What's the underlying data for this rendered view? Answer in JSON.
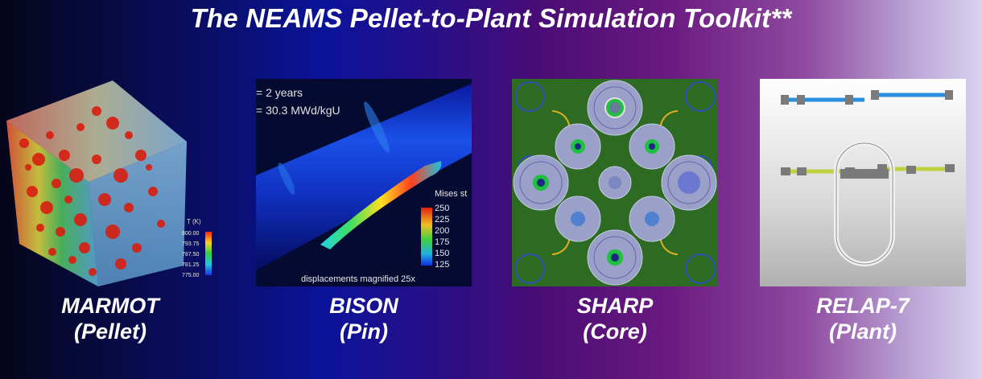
{
  "title": "The NEAMS Pellet-to-Plant Simulation Toolkit**",
  "panels": [
    {
      "name": "MARMOT",
      "subtitle": "(Pellet)",
      "image": {
        "legend_title": "T (K)",
        "legend_ticks": [
          "800.00",
          "793.75",
          "787.50",
          "781.25",
          "775.00"
        ]
      }
    },
    {
      "name": "BISON",
      "subtitle": "(Pin)",
      "image": {
        "time_text": "= 2 years",
        "burnup_text": "= 30.3 MWd/kgU",
        "legend_title": "Mises st",
        "legend_ticks": [
          "250",
          "225",
          "200",
          "175",
          "150",
          "125"
        ],
        "caption": "displacements magnified 25x"
      }
    },
    {
      "name": "SHARP",
      "subtitle": "(Core)"
    },
    {
      "name": "RELAP-7",
      "subtitle": "(Plant)"
    }
  ],
  "colors": {
    "marmot_bubbles": "#d81e10",
    "sharp_background": "#2e6b22",
    "relap_pipe_hot": "#e53020",
    "relap_pipe_cold": "#2a8fe0"
  }
}
